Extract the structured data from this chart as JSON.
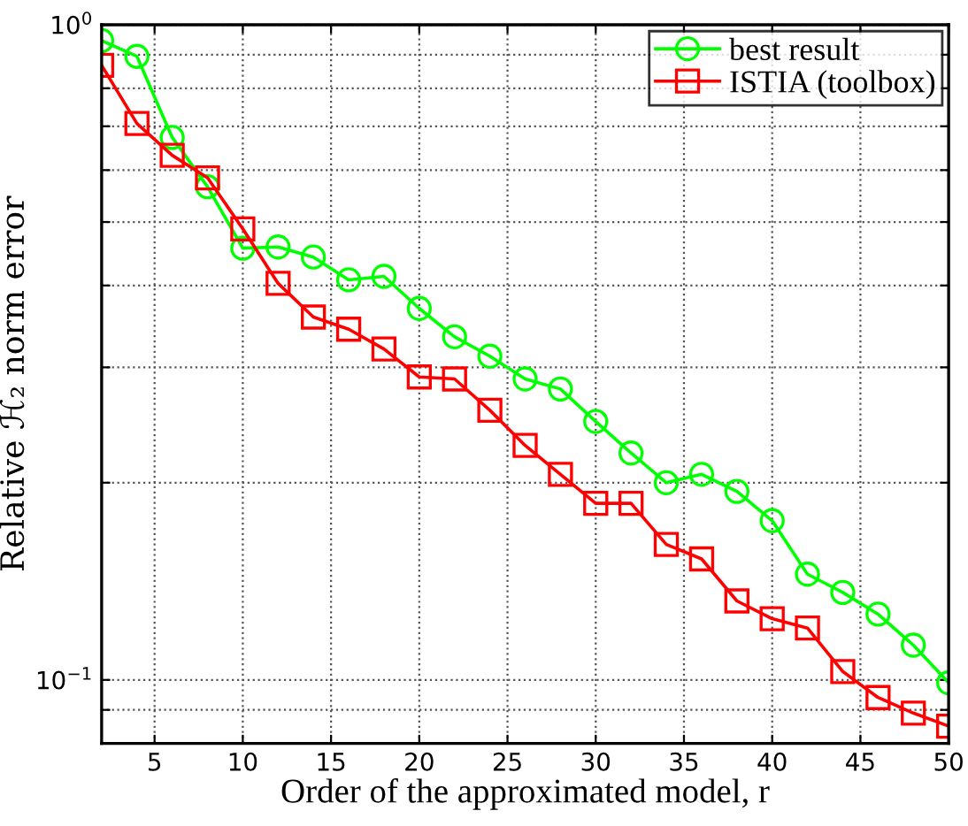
{
  "chart_data": {
    "type": "line",
    "xlabel": "Order of the approximated model, r",
    "ylabel": "Relative ℋ₂ norm error",
    "x": [
      2,
      4,
      6,
      8,
      10,
      12,
      14,
      16,
      18,
      20,
      22,
      24,
      26,
      28,
      30,
      32,
      34,
      36,
      38,
      40,
      42,
      44,
      46,
      48,
      50
    ],
    "series": [
      {
        "name": "best result",
        "color": "#00ff00",
        "marker": "circle",
        "values": [
          0.946,
          0.895,
          0.673,
          0.566,
          0.456,
          0.458,
          0.442,
          0.408,
          0.413,
          0.369,
          0.334,
          0.312,
          0.288,
          0.278,
          0.248,
          0.222,
          0.2,
          0.206,
          0.194,
          0.175,
          0.145,
          0.136,
          0.126,
          0.113,
          0.099
        ]
      },
      {
        "name": "ISTIA (toolbox)",
        "color": "#ff0000",
        "marker": "square",
        "values": [
          0.867,
          0.707,
          0.632,
          0.584,
          0.488,
          0.403,
          0.358,
          0.343,
          0.32,
          0.29,
          0.288,
          0.258,
          0.228,
          0.206,
          0.186,
          0.186,
          0.161,
          0.153,
          0.132,
          0.124,
          0.12,
          0.103,
          0.094,
          0.089,
          0.085
        ]
      }
    ],
    "log": "y",
    "xlim": [
      2,
      50
    ],
    "xticks": [
      5,
      10,
      15,
      20,
      25,
      30,
      35,
      40,
      45,
      50
    ],
    "ylim": [
      0.08,
      1
    ],
    "yticks": [
      {
        "value": 0.09,
        "label": null
      },
      {
        "value": 0.1,
        "label": "10$^{−1}$"
      },
      {
        "value": 0.2,
        "label": null
      },
      {
        "value": 0.3,
        "label": null
      },
      {
        "value": 0.4,
        "label": null
      },
      {
        "value": 0.5,
        "label": null
      },
      {
        "value": 0.6,
        "label": null
      },
      {
        "value": 0.7,
        "label": null
      },
      {
        "value": 0.8,
        "label": null
      },
      {
        "value": 0.9,
        "label": null
      },
      {
        "value": 1,
        "label": "10$^{0}$"
      }
    ],
    "grid": true,
    "legend": "top right",
    "line_style": "solid"
  }
}
